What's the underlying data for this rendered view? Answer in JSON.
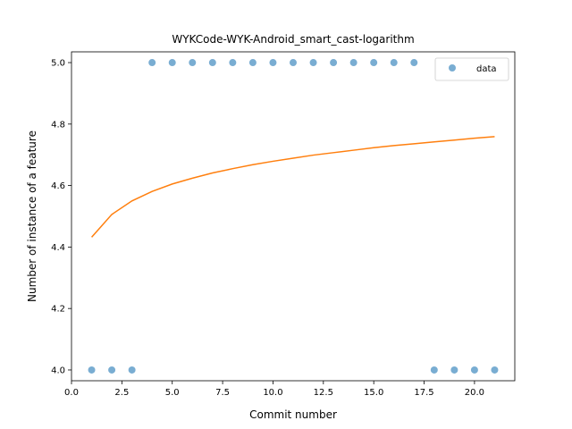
{
  "chart_data": {
    "type": "scatter",
    "title": "WYKCode-WYK-Android_smart_cast-logarithm",
    "xlabel": "Commit number",
    "ylabel": "Number of instance of a feature",
    "xlim": [
      0.0,
      22.0
    ],
    "ylim": [
      3.965,
      5.035
    ],
    "x_ticks": [
      0.0,
      2.5,
      5.0,
      7.5,
      10.0,
      12.5,
      15.0,
      17.5,
      20.0
    ],
    "x_tick_labels": [
      "0.0",
      "2.5",
      "5.0",
      "7.5",
      "10.0",
      "12.5",
      "15.0",
      "17.5",
      "20.0"
    ],
    "y_ticks": [
      4.0,
      4.2,
      4.4,
      4.6,
      4.8,
      5.0
    ],
    "y_tick_labels": [
      "4.0",
      "4.2",
      "4.4",
      "4.6",
      "4.8",
      "5.0"
    ],
    "grid": false,
    "legend_position": "top-right",
    "series": [
      {
        "name": "data",
        "kind": "scatter",
        "color": "#1f77b4",
        "x": [
          1,
          2,
          3,
          4,
          5,
          6,
          7,
          8,
          9,
          10,
          11,
          12,
          13,
          14,
          15,
          16,
          17,
          18,
          19,
          20,
          21
        ],
        "y": [
          4,
          4,
          4,
          5,
          5,
          5,
          5,
          5,
          5,
          5,
          5,
          5,
          5,
          5,
          5,
          5,
          5,
          4,
          4,
          4,
          4
        ]
      },
      {
        "kind": "line",
        "color": "#ff7f0e",
        "x": [
          1,
          2,
          3,
          4,
          5,
          6,
          7,
          8,
          9,
          10,
          11,
          12,
          13,
          14,
          15,
          16,
          17,
          18,
          19,
          20,
          21
        ],
        "y": [
          4.432,
          4.506,
          4.55,
          4.581,
          4.605,
          4.624,
          4.641,
          4.655,
          4.668,
          4.679,
          4.689,
          4.699,
          4.707,
          4.715,
          4.723,
          4.73,
          4.736,
          4.742,
          4.748,
          4.754,
          4.759
        ]
      }
    ]
  }
}
